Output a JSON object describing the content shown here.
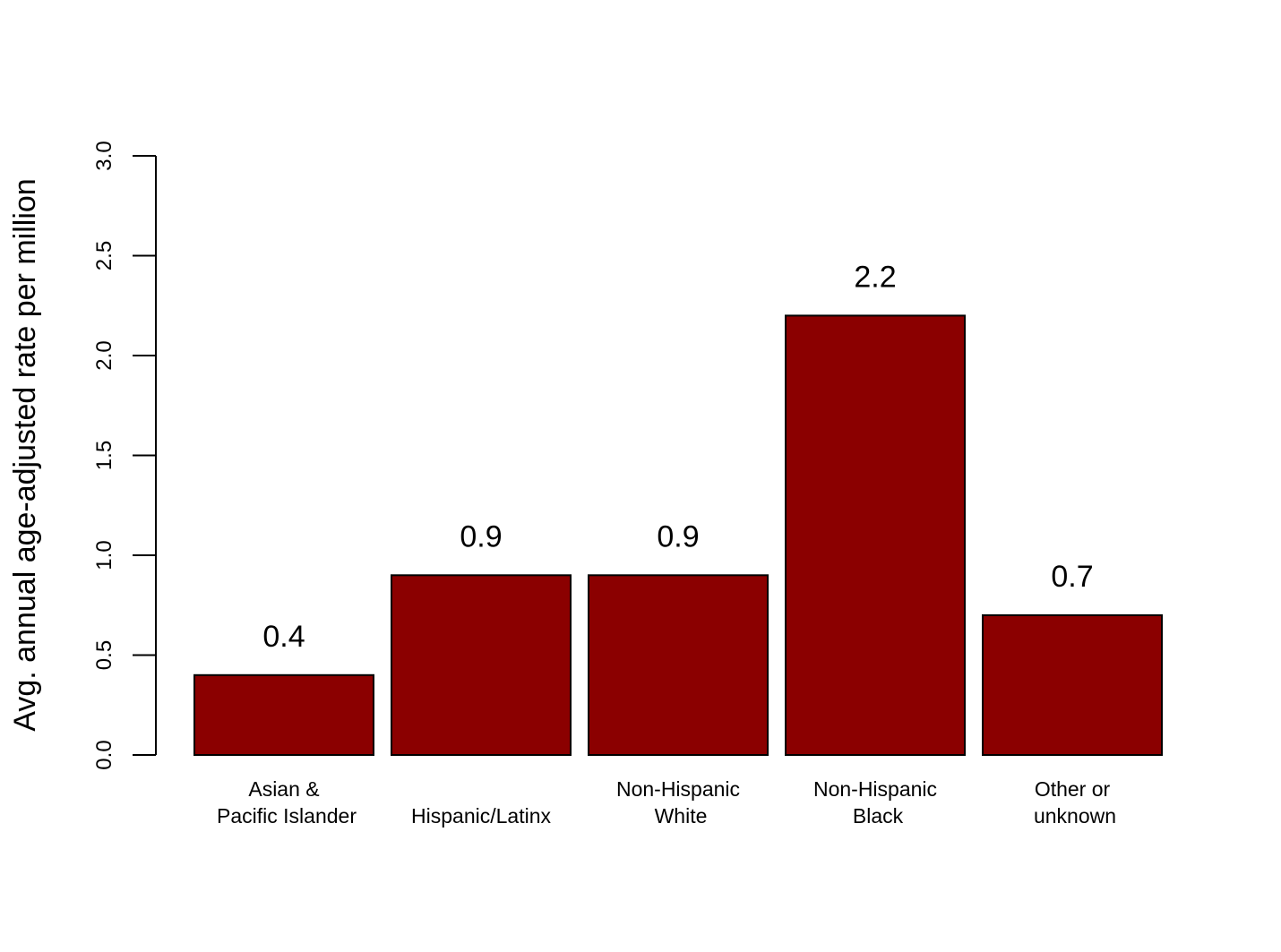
{
  "chart_data": {
    "type": "bar",
    "title": "",
    "xlabel": "",
    "ylabel": "Avg. annual age-adjusted rate per million",
    "categories": [
      [
        "Asian &",
        "Pacific Islander"
      ],
      [
        "Hispanic/Latinx"
      ],
      [
        "Non-Hispanic",
        "White"
      ],
      [
        "Non-Hispanic",
        "Black"
      ],
      [
        "Other or",
        "unknown"
      ]
    ],
    "values": [
      0.4,
      0.9,
      0.9,
      2.2,
      0.7
    ],
    "value_labels": [
      "0.4",
      "0.9",
      "0.9",
      "2.2",
      "0.7"
    ],
    "ylim": [
      0,
      3.0
    ],
    "yticks": [
      "0.0",
      "0.5",
      "1.0",
      "1.5",
      "2.0",
      "2.5",
      "3.0"
    ],
    "grid": false,
    "legend": "none",
    "bar_color": "#8B0000",
    "bar_edge_color": "#000000"
  }
}
